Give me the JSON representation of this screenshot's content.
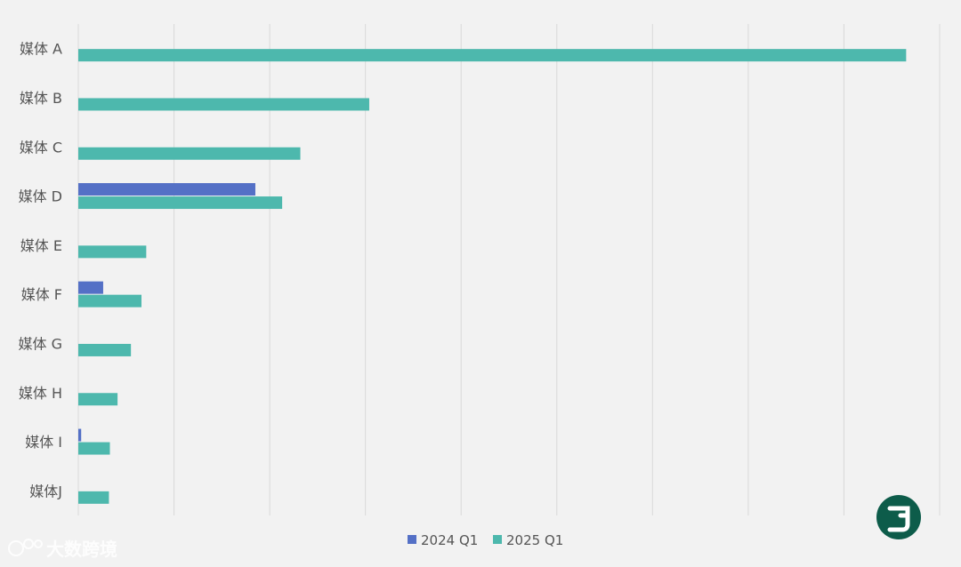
{
  "chart_data": {
    "type": "bar",
    "orientation": "horizontal",
    "categories": [
      "媒体 A",
      "媒体 B",
      "媒体 C",
      "媒体 D",
      "媒体 E",
      "媒体 F",
      "媒体 G",
      "媒体 H",
      "媒体 I",
      "媒体J"
    ],
    "series": [
      {
        "name": "2024 Q1",
        "color": "#5470c6",
        "values": [
          0,
          0,
          0,
          18.5,
          0,
          2.6,
          0,
          0,
          0.3,
          0
        ]
      },
      {
        "name": "2025 Q1",
        "color": "#4db8ad",
        "values": [
          86.5,
          30.4,
          23.2,
          21.3,
          7.1,
          6.6,
          5.5,
          4.1,
          3.3,
          3.2
        ]
      }
    ],
    "xlim": [
      0,
      90
    ],
    "grid": true,
    "legend_position": "bottom"
  },
  "watermark": {
    "text": "大数跨境"
  },
  "logo": {
    "icon": "brand-logo-icon",
    "color": "#0d5c4a"
  }
}
